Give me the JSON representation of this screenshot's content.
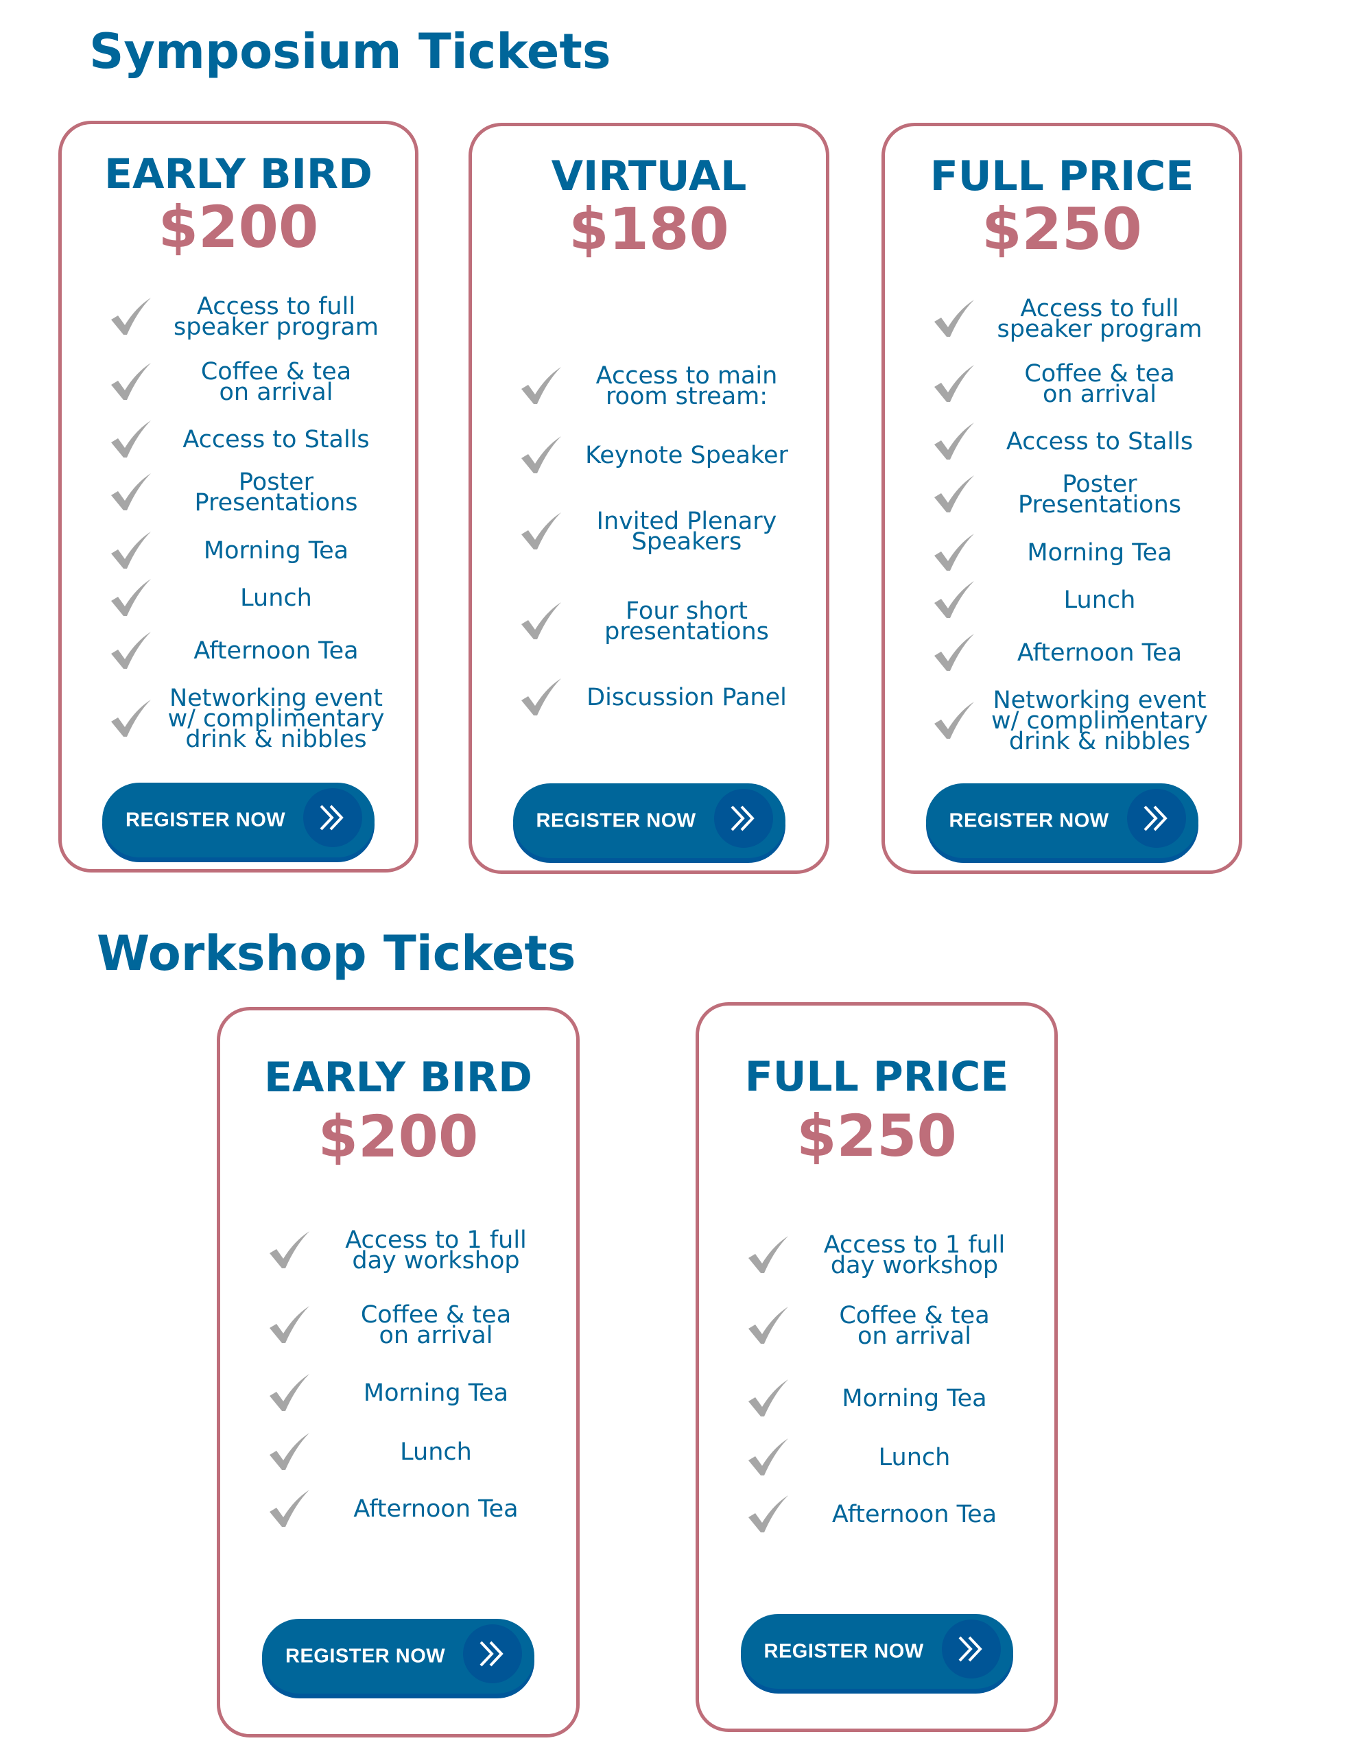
{
  "colors": {
    "accent_blue": "#00669a",
    "accent_pink": "#be6e7a",
    "check_gray": "#a6a6a6"
  },
  "symposium": {
    "title": "Symposium Tickets",
    "cards": [
      {
        "plan": "EARLY BIRD",
        "price": "$200",
        "features": [
          "Access to full\nspeaker program",
          "Coffee & tea\non arrival",
          "Access to Stalls",
          "Poster\nPresentations",
          "Morning Tea",
          "Lunch",
          "Afternoon Tea",
          "Networking event\nw/ complimentary\ndrink & nibbles"
        ],
        "button": "REGISTER NOW"
      },
      {
        "plan": "VIRTUAL",
        "price": "$180",
        "features": [
          "Access to main\nroom stream:",
          "Keynote Speaker",
          "Invited Plenary\nSpeakers",
          "Four short\npresentations",
          "Discussion Panel"
        ],
        "button": "REGISTER NOW"
      },
      {
        "plan": "FULL PRICE",
        "price": "$250",
        "features": [
          "Access to full\nspeaker program",
          "Coffee & tea\non arrival",
          "Access to Stalls",
          "Poster\nPresentations",
          "Morning Tea",
          "Lunch",
          "Afternoon Tea",
          "Networking event\nw/ complimentary\ndrink & nibbles"
        ],
        "button": "REGISTER NOW"
      }
    ]
  },
  "workshop": {
    "title": "Workshop Tickets",
    "cards": [
      {
        "plan": "EARLY BIRD",
        "price": "$200",
        "features": [
          "Access to 1 full\nday workshop",
          "Coffee & tea\non arrival",
          "Morning Tea",
          "Lunch",
          "Afternoon Tea"
        ],
        "button": "REGISTER NOW"
      },
      {
        "plan": "FULL PRICE",
        "price": "$250",
        "features": [
          "Access to 1 full\nday workshop",
          "Coffee & tea\non arrival",
          "Morning Tea",
          "Lunch",
          "Afternoon Tea"
        ],
        "button": "REGISTER NOW"
      }
    ]
  }
}
